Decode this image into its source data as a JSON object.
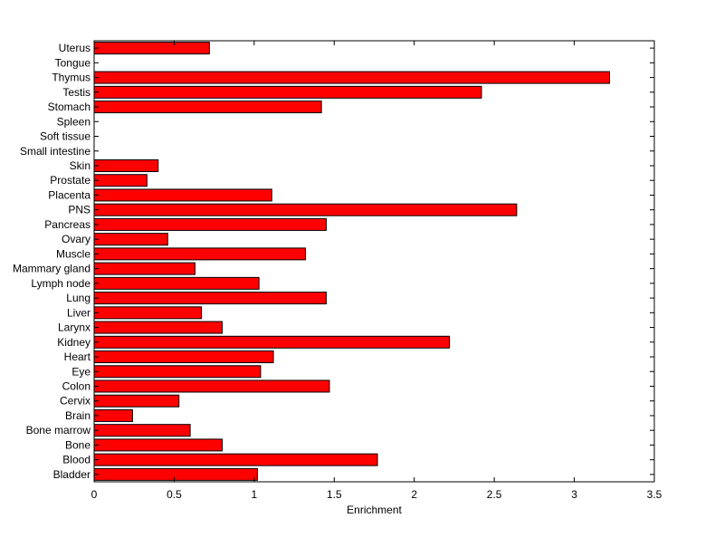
{
  "chart_data": {
    "type": "bar",
    "orientation": "horizontal",
    "categories": [
      "Uterus",
      "Tongue",
      "Thymus",
      "Testis",
      "Stomach",
      "Spleen",
      "Soft tissue",
      "Small intestine",
      "Skin",
      "Prostate",
      "Placenta",
      "PNS",
      "Pancreas",
      "Ovary",
      "Muscle",
      "Mammary gland",
      "Lymph node",
      "Lung",
      "Liver",
      "Larynx",
      "Kidney",
      "Heart",
      "Eye",
      "Colon",
      "Cervix",
      "Brain",
      "Bone marrow",
      "Bone",
      "Blood",
      "Bladder"
    ],
    "values": [
      0.72,
      0,
      3.22,
      2.42,
      1.42,
      0,
      0,
      0,
      0.4,
      0.33,
      1.11,
      2.64,
      1.45,
      0.46,
      1.32,
      0.63,
      1.03,
      1.45,
      0.67,
      0.8,
      2.22,
      1.12,
      1.04,
      1.47,
      0.53,
      0.24,
      0.6,
      0.8,
      1.77,
      1.02
    ],
    "xlabel": "Enrichment",
    "ylabel": "",
    "title": "",
    "xlim": [
      0,
      3.5
    ],
    "xticks": [
      "0",
      "0.5",
      "1",
      "1.5",
      "2",
      "2.5",
      "3",
      "3.5"
    ],
    "grid": false,
    "bar_color": "#ff0000",
    "edge_color": "#000000"
  }
}
